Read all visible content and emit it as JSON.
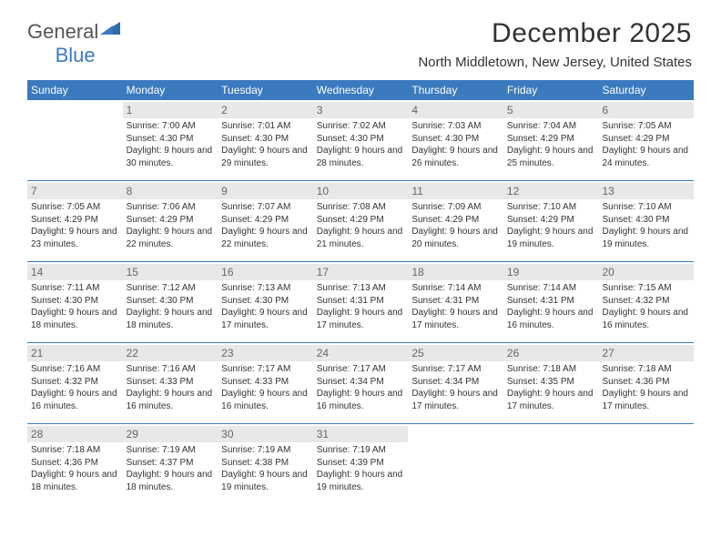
{
  "brand": {
    "part1": "General",
    "part2": "Blue"
  },
  "title": "December 2025",
  "subtitle": "North Middletown, New Jersey, United States",
  "colors": {
    "header_bg": "#3b7abf",
    "header_text": "#ffffff",
    "daynum_bg": "#e8e8e8",
    "daynum_text": "#666666",
    "text": "#333333",
    "row_border": "#3b7abf"
  },
  "font": {
    "family": "Arial",
    "day_body_size_pt": 8,
    "day_num_size_pt": 9,
    "header_size_pt": 9,
    "title_size_pt": 22,
    "subtitle_size_pt": 11
  },
  "days_of_week": [
    "Sunday",
    "Monday",
    "Tuesday",
    "Wednesday",
    "Thursday",
    "Friday",
    "Saturday"
  ],
  "weeks": [
    [
      {
        "blank": true
      },
      {
        "num": "1",
        "sunrise": "Sunrise: 7:00 AM",
        "sunset": "Sunset: 4:30 PM",
        "daylight": "Daylight: 9 hours and 30 minutes."
      },
      {
        "num": "2",
        "sunrise": "Sunrise: 7:01 AM",
        "sunset": "Sunset: 4:30 PM",
        "daylight": "Daylight: 9 hours and 29 minutes."
      },
      {
        "num": "3",
        "sunrise": "Sunrise: 7:02 AM",
        "sunset": "Sunset: 4:30 PM",
        "daylight": "Daylight: 9 hours and 28 minutes."
      },
      {
        "num": "4",
        "sunrise": "Sunrise: 7:03 AM",
        "sunset": "Sunset: 4:30 PM",
        "daylight": "Daylight: 9 hours and 26 minutes."
      },
      {
        "num": "5",
        "sunrise": "Sunrise: 7:04 AM",
        "sunset": "Sunset: 4:29 PM",
        "daylight": "Daylight: 9 hours and 25 minutes."
      },
      {
        "num": "6",
        "sunrise": "Sunrise: 7:05 AM",
        "sunset": "Sunset: 4:29 PM",
        "daylight": "Daylight: 9 hours and 24 minutes."
      }
    ],
    [
      {
        "num": "7",
        "sunrise": "Sunrise: 7:05 AM",
        "sunset": "Sunset: 4:29 PM",
        "daylight": "Daylight: 9 hours and 23 minutes."
      },
      {
        "num": "8",
        "sunrise": "Sunrise: 7:06 AM",
        "sunset": "Sunset: 4:29 PM",
        "daylight": "Daylight: 9 hours and 22 minutes."
      },
      {
        "num": "9",
        "sunrise": "Sunrise: 7:07 AM",
        "sunset": "Sunset: 4:29 PM",
        "daylight": "Daylight: 9 hours and 22 minutes."
      },
      {
        "num": "10",
        "sunrise": "Sunrise: 7:08 AM",
        "sunset": "Sunset: 4:29 PM",
        "daylight": "Daylight: 9 hours and 21 minutes."
      },
      {
        "num": "11",
        "sunrise": "Sunrise: 7:09 AM",
        "sunset": "Sunset: 4:29 PM",
        "daylight": "Daylight: 9 hours and 20 minutes."
      },
      {
        "num": "12",
        "sunrise": "Sunrise: 7:10 AM",
        "sunset": "Sunset: 4:29 PM",
        "daylight": "Daylight: 9 hours and 19 minutes."
      },
      {
        "num": "13",
        "sunrise": "Sunrise: 7:10 AM",
        "sunset": "Sunset: 4:30 PM",
        "daylight": "Daylight: 9 hours and 19 minutes."
      }
    ],
    [
      {
        "num": "14",
        "sunrise": "Sunrise: 7:11 AM",
        "sunset": "Sunset: 4:30 PM",
        "daylight": "Daylight: 9 hours and 18 minutes."
      },
      {
        "num": "15",
        "sunrise": "Sunrise: 7:12 AM",
        "sunset": "Sunset: 4:30 PM",
        "daylight": "Daylight: 9 hours and 18 minutes."
      },
      {
        "num": "16",
        "sunrise": "Sunrise: 7:13 AM",
        "sunset": "Sunset: 4:30 PM",
        "daylight": "Daylight: 9 hours and 17 minutes."
      },
      {
        "num": "17",
        "sunrise": "Sunrise: 7:13 AM",
        "sunset": "Sunset: 4:31 PM",
        "daylight": "Daylight: 9 hours and 17 minutes."
      },
      {
        "num": "18",
        "sunrise": "Sunrise: 7:14 AM",
        "sunset": "Sunset: 4:31 PM",
        "daylight": "Daylight: 9 hours and 17 minutes."
      },
      {
        "num": "19",
        "sunrise": "Sunrise: 7:14 AM",
        "sunset": "Sunset: 4:31 PM",
        "daylight": "Daylight: 9 hours and 16 minutes."
      },
      {
        "num": "20",
        "sunrise": "Sunrise: 7:15 AM",
        "sunset": "Sunset: 4:32 PM",
        "daylight": "Daylight: 9 hours and 16 minutes."
      }
    ],
    [
      {
        "num": "21",
        "sunrise": "Sunrise: 7:16 AM",
        "sunset": "Sunset: 4:32 PM",
        "daylight": "Daylight: 9 hours and 16 minutes."
      },
      {
        "num": "22",
        "sunrise": "Sunrise: 7:16 AM",
        "sunset": "Sunset: 4:33 PM",
        "daylight": "Daylight: 9 hours and 16 minutes."
      },
      {
        "num": "23",
        "sunrise": "Sunrise: 7:17 AM",
        "sunset": "Sunset: 4:33 PM",
        "daylight": "Daylight: 9 hours and 16 minutes."
      },
      {
        "num": "24",
        "sunrise": "Sunrise: 7:17 AM",
        "sunset": "Sunset: 4:34 PM",
        "daylight": "Daylight: 9 hours and 16 minutes."
      },
      {
        "num": "25",
        "sunrise": "Sunrise: 7:17 AM",
        "sunset": "Sunset: 4:34 PM",
        "daylight": "Daylight: 9 hours and 17 minutes."
      },
      {
        "num": "26",
        "sunrise": "Sunrise: 7:18 AM",
        "sunset": "Sunset: 4:35 PM",
        "daylight": "Daylight: 9 hours and 17 minutes."
      },
      {
        "num": "27",
        "sunrise": "Sunrise: 7:18 AM",
        "sunset": "Sunset: 4:36 PM",
        "daylight": "Daylight: 9 hours and 17 minutes."
      }
    ],
    [
      {
        "num": "28",
        "sunrise": "Sunrise: 7:18 AM",
        "sunset": "Sunset: 4:36 PM",
        "daylight": "Daylight: 9 hours and 18 minutes."
      },
      {
        "num": "29",
        "sunrise": "Sunrise: 7:19 AM",
        "sunset": "Sunset: 4:37 PM",
        "daylight": "Daylight: 9 hours and 18 minutes."
      },
      {
        "num": "30",
        "sunrise": "Sunrise: 7:19 AM",
        "sunset": "Sunset: 4:38 PM",
        "daylight": "Daylight: 9 hours and 19 minutes."
      },
      {
        "num": "31",
        "sunrise": "Sunrise: 7:19 AM",
        "sunset": "Sunset: 4:39 PM",
        "daylight": "Daylight: 9 hours and 19 minutes."
      },
      {
        "blank": true
      },
      {
        "blank": true
      },
      {
        "blank": true
      }
    ]
  ]
}
